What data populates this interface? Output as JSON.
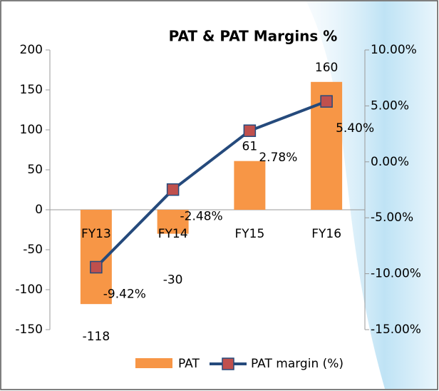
{
  "chart_data": {
    "type": "bar_line",
    "title": "PAT & PAT Margins %",
    "categories": [
      "FY13",
      "FY14",
      "FY15",
      "FY16"
    ],
    "series": [
      {
        "name": "PAT",
        "color": "#f79646",
        "values": [
          -118,
          -30,
          61,
          160
        ]
      },
      {
        "name": "PAT margin (%)",
        "color": "#254a7c",
        "marker_color": "#c0504d",
        "axis": "y2",
        "values": [
          -9.42,
          -2.48,
          2.78,
          5.4
        ],
        "value_labels": [
          "-9.42%",
          "-2.48%",
          "2.78%",
          "5.40%"
        ]
      }
    ],
    "ylim": [
      -150,
      200
    ],
    "yticks": [
      -150,
      -100,
      -50,
      0,
      50,
      100,
      150,
      200
    ],
    "y2lim": [
      -15,
      10
    ],
    "y2ticks": [
      {
        "value": -15,
        "label": "-15.00%"
      },
      {
        "value": -10,
        "label": "-10.00%"
      },
      {
        "value": -5,
        "label": "-5.00%"
      },
      {
        "value": 0,
        "label": "0.00%"
      },
      {
        "value": 5,
        "label": "5.00%"
      },
      {
        "value": 10,
        "label": "10.00%"
      }
    ],
    "legend": "bottom"
  }
}
